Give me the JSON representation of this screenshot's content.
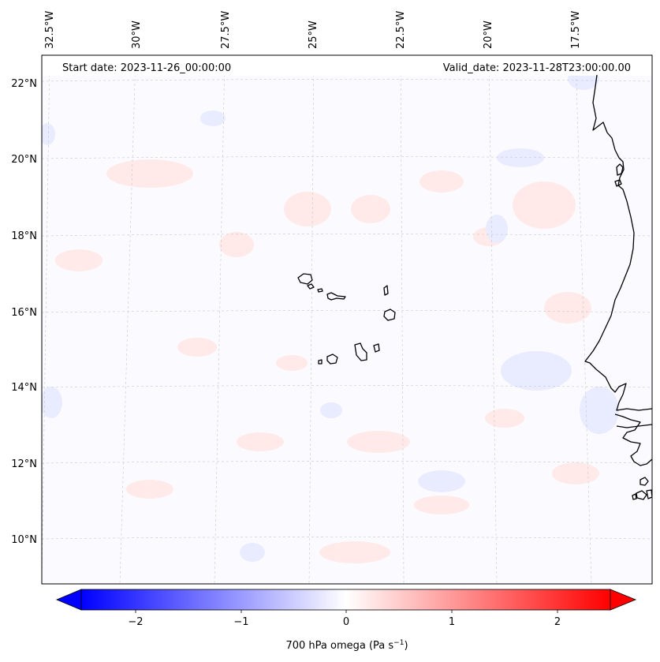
{
  "header": {
    "start_date": "Start date: 2023-11-26_00:00:00",
    "valid_date": "Valid_date: 2023-11-28T23:00:00.00"
  },
  "map": {
    "projection": "lambert-conformal",
    "extent": {
      "lon_min": -33.0,
      "lon_max": -15.5,
      "lat_min": 9.0,
      "lat_max": 22.5
    },
    "gridlines": "dashed",
    "lon_labels": [
      "32.5°W",
      "30°W",
      "27.5°W",
      "25°W",
      "22.5°W",
      "20°W",
      "17.5°W"
    ],
    "lat_labels": [
      "22°N",
      "20°N",
      "18°N",
      "16°N",
      "14°N",
      "12°N",
      "10°N"
    ],
    "field_colors": {
      "positive": "#ffe9e9",
      "negative": "#e9ebff",
      "background": "#fbfbff"
    },
    "coastline_color": "#000000"
  },
  "colorbar": {
    "label_text": "700 hPa omega (Pa s",
    "label_exp": "−1",
    "label_close": ")",
    "ticks": [
      "−2",
      "−1",
      "0",
      "1",
      "2"
    ],
    "range": [
      -2.6,
      2.6
    ],
    "cmap": "bwr",
    "extend": "both"
  }
}
